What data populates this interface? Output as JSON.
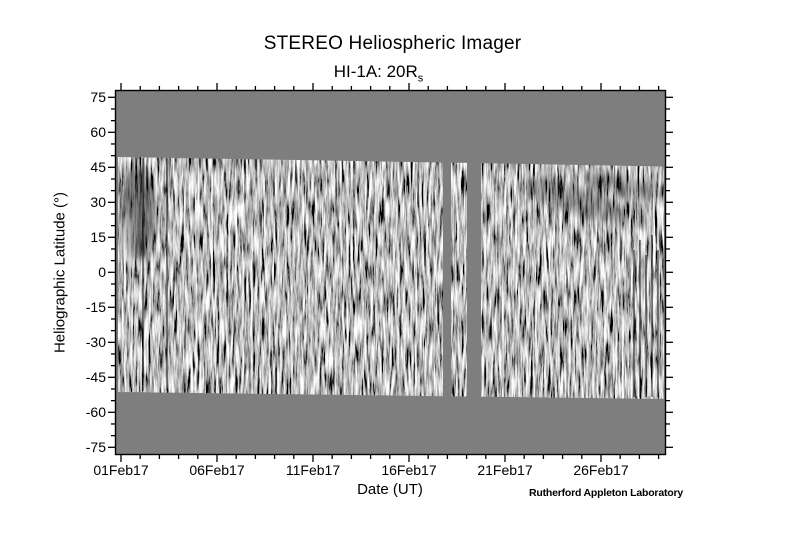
{
  "figure": {
    "title": "STEREO Heliospheric Imager",
    "subtitle_base": "HI-1A: 20R",
    "subtitle_sub": "s",
    "credit": "Rutherford Appleton Laboratory"
  },
  "axes": {
    "x": {
      "label": "Date (UT)",
      "ticks": [
        "01Feb17",
        "06Feb17",
        "11Feb17",
        "16Feb17",
        "21Feb17",
        "26Feb17"
      ]
    },
    "y": {
      "label": "Heliographic Latitude (°)",
      "ticks": [
        "75",
        "60",
        "45",
        "30",
        "15",
        "0",
        "-15",
        "-30",
        "-45",
        "-60",
        "-75"
      ]
    }
  },
  "colors": {
    "page_bg": "#ffffff",
    "plot_bg": "#7e7e7e",
    "axis": "#000000",
    "text": "#000000"
  },
  "chart_data": {
    "type": "heatmap",
    "title": "STEREO Heliospheric Imager",
    "subtitle": "HI-1A: 20Rs (s subscript)",
    "xlabel": "Date (UT)",
    "ylabel": "Heliographic Latitude (°)",
    "x_tick_labels": [
      "01Feb17",
      "06Feb17",
      "11Feb17",
      "16Feb17",
      "21Feb17",
      "26Feb17"
    ],
    "x_tick_days": [
      0,
      5,
      10,
      15,
      20,
      25
    ],
    "x_minor_tick_interval_days": 1,
    "xlim_days_from_01Feb17": [
      -0.3,
      28.4
    ],
    "y_tick_values": [
      75,
      60,
      45,
      30,
      15,
      0,
      -15,
      -30,
      -45,
      -60,
      -75
    ],
    "y_minor_tick_interval_deg": 5,
    "ylim": [
      -78,
      78
    ],
    "grid": false,
    "legend": false,
    "plot_bg_gray": "#7e7e7e",
    "value_encoding": "grayscale running-difference brightness image; mid-gray = background, black/white streaks = transient intensity variations",
    "coverage": {
      "lat_top_deg": 47,
      "lat_bottom_deg": -50,
      "data_segments_days": [
        [
          -0.15,
          16.8
        ],
        [
          17.2,
          18.0
        ],
        [
          18.8,
          28.3
        ]
      ],
      "data_gaps_days": [
        [
          16.8,
          17.2
        ],
        [
          18.0,
          18.8
        ]
      ]
    }
  }
}
